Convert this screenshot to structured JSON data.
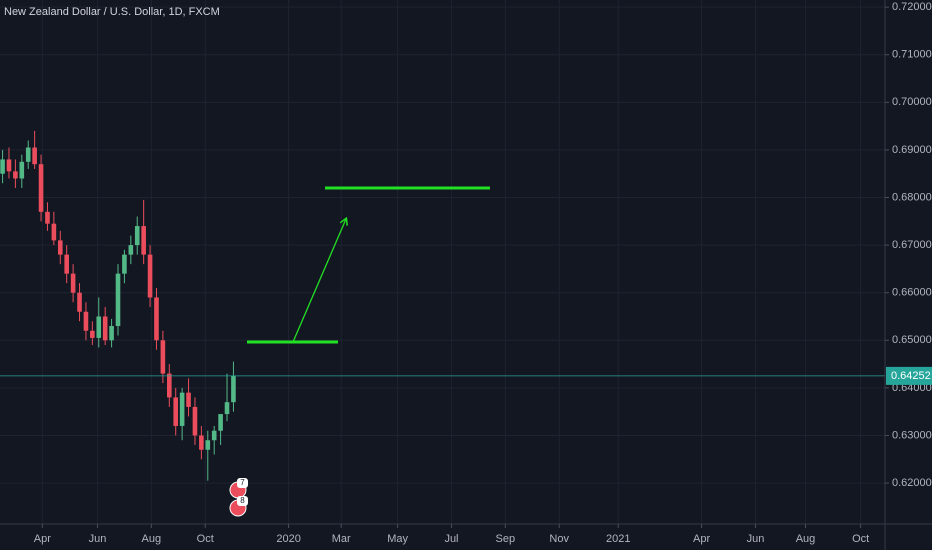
{
  "chart_data": {
    "type": "candlestick",
    "title": "New Zealand Dollar / U.S. Dollar, 1D, FXCM",
    "x": [
      2,
      7,
      12,
      17,
      22,
      27,
      32,
      37,
      42,
      47,
      52,
      57,
      62,
      67,
      72,
      77,
      82,
      87,
      92,
      97,
      102,
      107,
      112,
      117,
      122,
      127,
      132,
      137,
      142,
      147,
      152,
      157,
      162,
      167,
      172,
      177,
      182
    ],
    "open": [
      0.685,
      0.688,
      0.6855,
      0.684,
      0.6875,
      0.6905,
      0.687,
      0.677,
      0.6745,
      0.671,
      0.668,
      0.664,
      0.66,
      0.656,
      0.652,
      0.6505,
      0.655,
      0.65,
      0.653,
      0.664,
      0.668,
      0.67,
      0.674,
      0.668,
      0.659,
      0.65,
      0.643,
      0.638,
      0.632,
      0.639,
      0.636,
      0.63,
      0.627,
      0.629,
      0.631,
      0.6345,
      0.637
    ],
    "high": [
      0.69,
      0.6905,
      0.688,
      0.689,
      0.692,
      0.694,
      0.689,
      0.679,
      0.677,
      0.673,
      0.67,
      0.666,
      0.662,
      0.658,
      0.654,
      0.659,
      0.657,
      0.6545,
      0.666,
      0.669,
      0.672,
      0.676,
      0.6795,
      0.67,
      0.661,
      0.652,
      0.645,
      0.64,
      0.64,
      0.642,
      0.638,
      0.632,
      0.631,
      0.632,
      0.634,
      0.643,
      0.6455
    ],
    "low": [
      0.683,
      0.684,
      0.682,
      0.682,
      0.686,
      0.686,
      0.675,
      0.673,
      0.67,
      0.666,
      0.662,
      0.658,
      0.654,
      0.65,
      0.649,
      0.6485,
      0.649,
      0.6485,
      0.651,
      0.662,
      0.666,
      0.668,
      0.666,
      0.657,
      0.648,
      0.641,
      0.636,
      0.63,
      0.629,
      0.634,
      0.628,
      0.625,
      0.6205,
      0.626,
      0.628,
      0.633,
      0.635
    ],
    "close": [
      0.688,
      0.6855,
      0.684,
      0.6875,
      0.6905,
      0.687,
      0.677,
      0.6745,
      0.671,
      0.668,
      0.664,
      0.66,
      0.656,
      0.652,
      0.6505,
      0.655,
      0.65,
      0.653,
      0.664,
      0.668,
      0.67,
      0.674,
      0.668,
      0.659,
      0.65,
      0.643,
      0.638,
      0.632,
      0.639,
      0.636,
      0.63,
      0.627,
      0.629,
      0.631,
      0.6345,
      0.637,
      0.6425
    ],
    "up_color": "#53b987",
    "down_color": "#eb4d5c",
    "xlim": [
      0,
      690
    ],
    "xticks": [
      {
        "value": 33,
        "label": "Apr"
      },
      {
        "value": 76,
        "label": "Jun"
      },
      {
        "value": 118,
        "label": "Aug"
      },
      {
        "value": 160,
        "label": "Oct"
      },
      {
        "value": 225,
        "label": "2020"
      },
      {
        "value": 266,
        "label": "Mar"
      },
      {
        "value": 310,
        "label": "May"
      },
      {
        "value": 352,
        "label": "Jul"
      },
      {
        "value": 394,
        "label": "Sep"
      },
      {
        "value": 436,
        "label": "Nov"
      },
      {
        "value": 482,
        "label": "2021"
      },
      {
        "value": 547,
        "label": "Apr"
      },
      {
        "value": 589,
        "label": "Jun"
      },
      {
        "value": 628,
        "label": "Aug"
      },
      {
        "value": 671,
        "label": "Oct"
      }
    ],
    "ylim": [
      0.6114,
      0.7215
    ],
    "yticks": [
      {
        "value": 0.62,
        "label": "0.62000"
      },
      {
        "value": 0.63,
        "label": "0.63000"
      },
      {
        "value": 0.64,
        "label": "0.64000"
      },
      {
        "value": 0.65,
        "label": "0.65000"
      },
      {
        "value": 0.66,
        "label": "0.66000"
      },
      {
        "value": 0.67,
        "label": "0.67000"
      },
      {
        "value": 0.68,
        "label": "0.68000"
      },
      {
        "value": 0.69,
        "label": "0.69000"
      },
      {
        "value": 0.7,
        "label": "0.70000"
      },
      {
        "value": 0.71,
        "label": "0.71000"
      },
      {
        "value": 0.72,
        "label": "0.72000"
      }
    ],
    "last_price": 0.64252,
    "event_labels": [
      "7",
      "8"
    ],
    "grid": true
  }
}
